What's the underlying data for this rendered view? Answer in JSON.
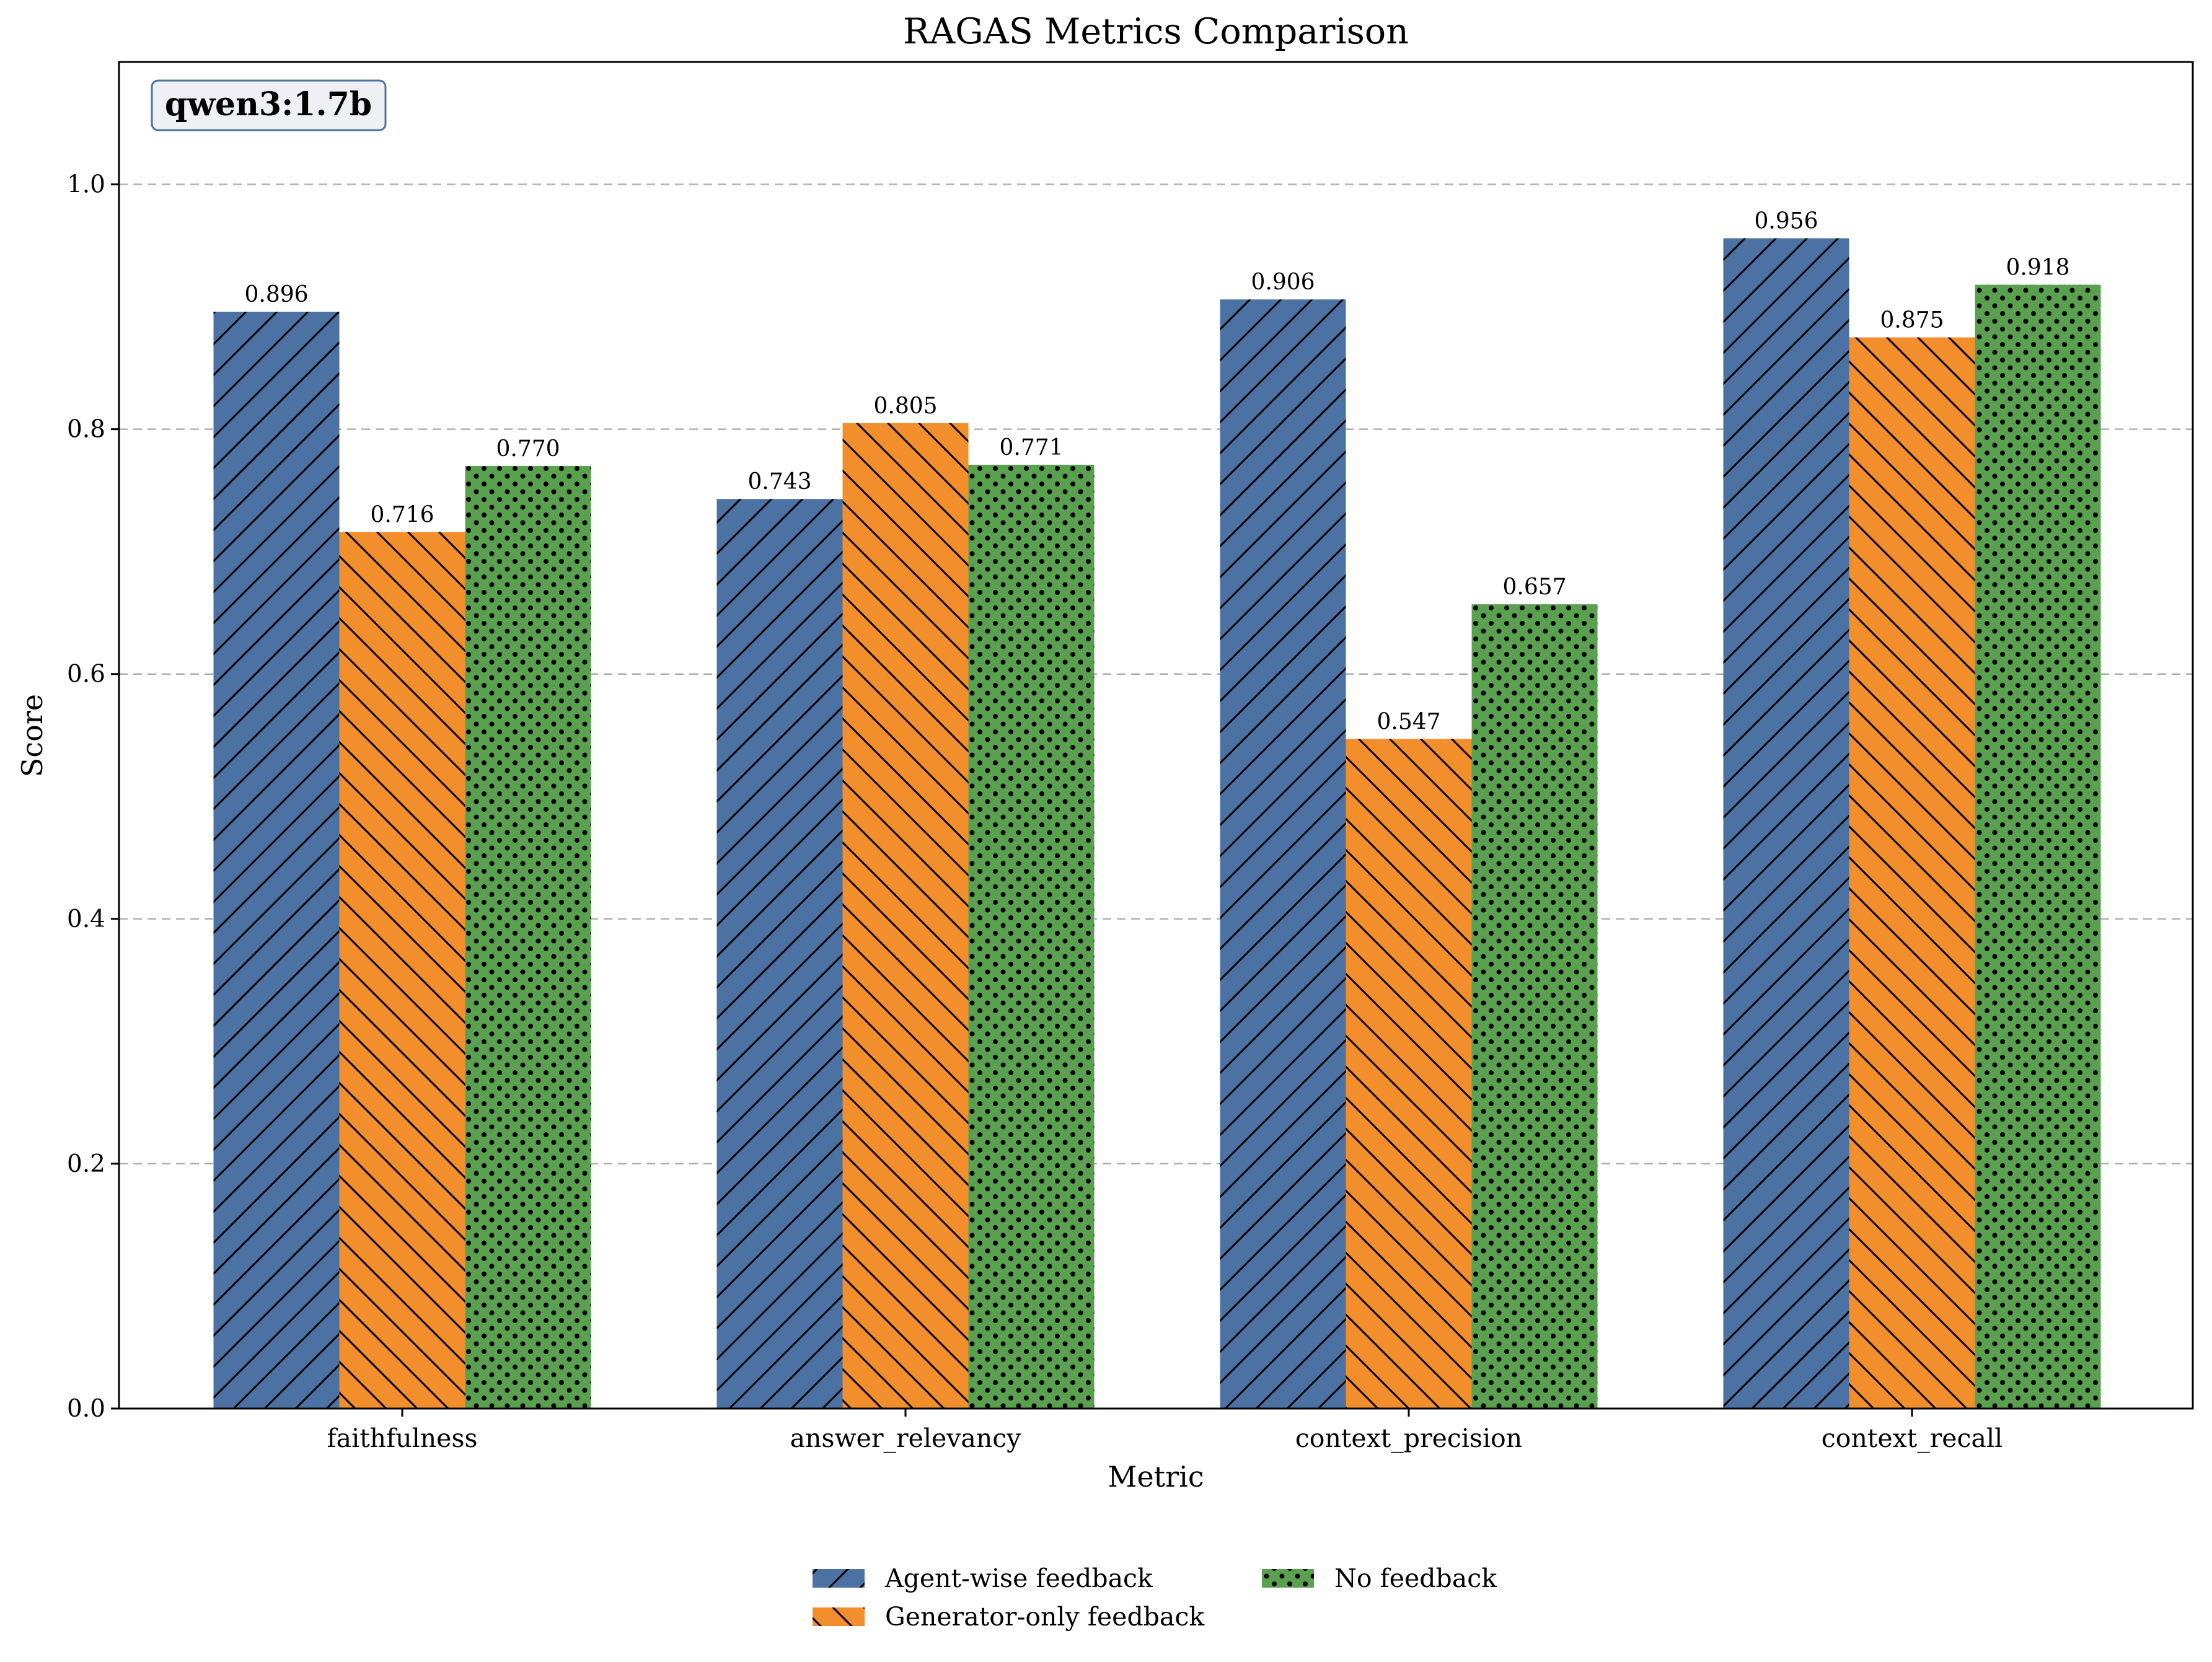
{
  "chart_data": {
    "type": "bar",
    "title": "RAGAS Metrics Comparison",
    "xlabel": "Metric",
    "ylabel": "Score",
    "ylim": [
      0,
      1.1
    ],
    "yticks": [
      0.0,
      0.2,
      0.4,
      0.6,
      0.8,
      1.0
    ],
    "ytick_labels": [
      "0.0",
      "0.2",
      "0.4",
      "0.6",
      "0.8",
      "1.0"
    ],
    "grid": true,
    "legend_position": "bottom-center",
    "annotation": "qwen3:1.7b",
    "categories": [
      "faithfulness",
      "answer_relevancy",
      "context_precision",
      "context_recall"
    ],
    "series": [
      {
        "name": "Agent-wise feedback",
        "values": [
          0.896,
          0.743,
          0.906,
          0.956
        ],
        "labels": [
          "0.896",
          "0.743",
          "0.906",
          "0.956"
        ],
        "color": "#4c72a4",
        "hatch": "forward-diagonal"
      },
      {
        "name": "Generator-only feedback",
        "values": [
          0.716,
          0.805,
          0.547,
          0.875
        ],
        "labels": [
          "0.716",
          "0.805",
          "0.547",
          "0.875"
        ],
        "color": "#f28e2b",
        "hatch": "back-diagonal"
      },
      {
        "name": "No feedback",
        "values": [
          0.77,
          0.771,
          0.657,
          0.918
        ],
        "labels": [
          "0.770",
          "0.771",
          "0.657",
          "0.918"
        ],
        "color": "#59a14f",
        "hatch": "dots"
      }
    ]
  }
}
